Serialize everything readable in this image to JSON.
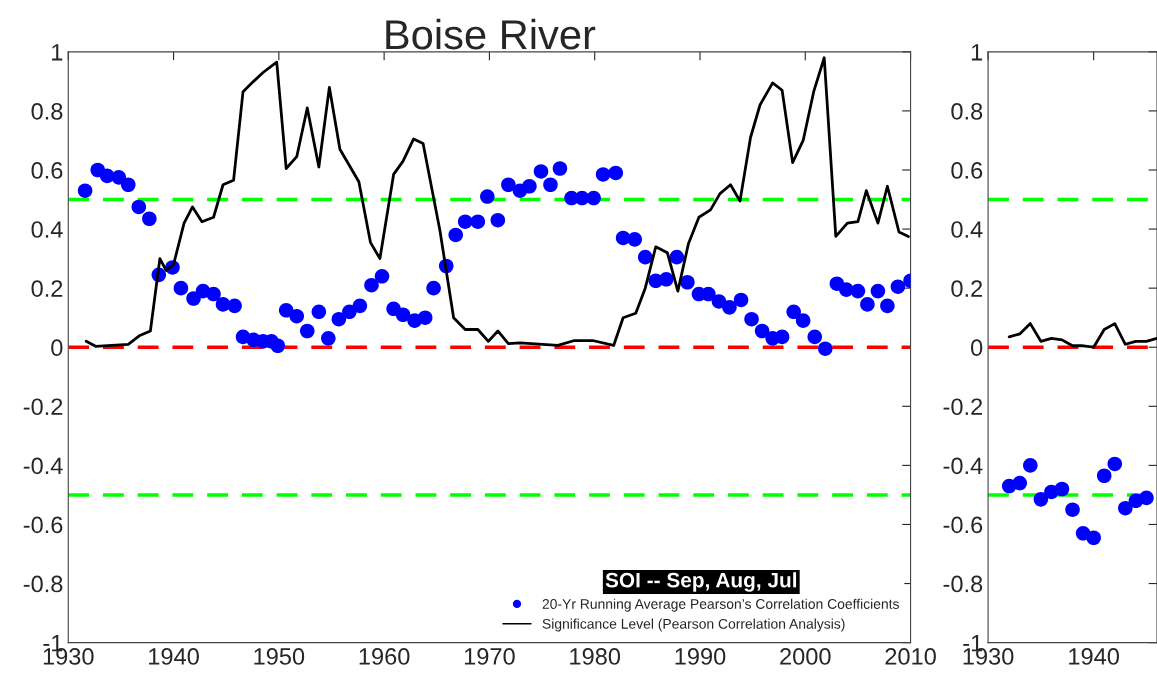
{
  "chart_data": [
    {
      "type": "scatter",
      "title": "Boise River",
      "legend_title": "SOI -- Sep, Aug, Jul",
      "legend": "bottom right",
      "grid": false,
      "xlim": [
        1930,
        2010
      ],
      "xticks": [
        1930,
        1940,
        1950,
        1960,
        1970,
        1980,
        1990,
        2000,
        2010
      ],
      "ylim": [
        -1,
        1
      ],
      "yticks": [
        -1,
        -0.8,
        -0.6,
        -0.4,
        -0.2,
        0,
        0.2,
        0.4,
        0.6,
        0.8,
        1
      ],
      "series": [
        {
          "name": "20-Yr Running Average Pearson’s Correlation Coefficients",
          "marker": "circle",
          "color": "#0000ff",
          "x": [
            1931.6,
            1932.8,
            1933.7,
            1934.8,
            1935.7,
            1936.7,
            1937.7,
            1938.6,
            1939.9,
            1940.7,
            1941.9,
            1942.8,
            1943.8,
            1944.7,
            1945.8,
            1946.6,
            1947.6,
            1948.5,
            1949.3,
            1949.9,
            1950.7,
            1951.7,
            1952.7,
            1953.8,
            1954.7,
            1955.7,
            1956.7,
            1957.7,
            1958.8,
            1959.8,
            1960.9,
            1961.8,
            1962.9,
            1963.9,
            1964.7,
            1965.9,
            1966.8,
            1967.7,
            1968.9,
            1969.8,
            1970.8,
            1971.8,
            1972.9,
            1973.8,
            1974.9,
            1975.8,
            1976.7,
            1977.8,
            1978.8,
            1979.9,
            1980.8,
            1982.0,
            1982.7,
            1983.8,
            1984.8,
            1985.8,
            1986.8,
            1987.8,
            1988.8,
            1989.9,
            1990.8,
            1991.8,
            1992.8,
            1993.9,
            1994.9,
            1995.9,
            1996.9,
            1997.8,
            1998.9,
            1999.8,
            2000.9,
            2001.9,
            2003.0,
            2003.9,
            2005.0,
            2005.9,
            2006.9,
            2007.8,
            2008.8,
            2010.0
          ],
          "values": [
            0.53,
            0.6,
            0.58,
            0.575,
            0.55,
            0.475,
            0.435,
            0.245,
            0.27,
            0.2,
            0.165,
            0.19,
            0.18,
            0.145,
            0.14,
            0.035,
            0.025,
            0.02,
            0.02,
            0.005,
            0.125,
            0.105,
            0.055,
            0.12,
            0.03,
            0.095,
            0.12,
            0.14,
            0.21,
            0.24,
            0.13,
            0.11,
            0.09,
            0.1,
            0.2,
            0.275,
            0.38,
            0.425,
            0.425,
            0.51,
            0.43,
            0.55,
            0.53,
            0.545,
            0.595,
            0.55,
            0.605,
            0.505,
            0.505,
            0.505,
            0.585,
            0.59,
            0.37,
            0.365,
            0.305,
            0.225,
            0.23,
            0.305,
            0.22,
            0.18,
            0.18,
            0.155,
            0.135,
            0.16,
            0.095,
            0.055,
            0.03,
            0.035,
            0.12,
            0.09,
            0.035,
            -0.005,
            0.215,
            0.195,
            0.19,
            0.145,
            0.19,
            0.14,
            0.205,
            0.225
          ]
        },
        {
          "name": "Significance Level (Pearson Correlation Analysis)",
          "type": "line",
          "marker": "none",
          "line_style": "solid",
          "color": "#000000",
          "x": [
            1931.7,
            1932.6,
            1935.7,
            1936.8,
            1937.8,
            1938.7,
            1939.3,
            1940.0,
            1941.0,
            1941.8,
            1942.7,
            1943.8,
            1944.7,
            1945.7,
            1946.6,
            1947.6,
            1948.5,
            1949.8,
            1950.7,
            1951.7,
            1952.7,
            1953.8,
            1954.8,
            1955.8,
            1957.6,
            1958.7,
            1959.6,
            1960.9,
            1961.8,
            1962.8,
            1963.7,
            1965.3,
            1966.6,
            1967.7,
            1968.9,
            1969.9,
            1970.8,
            1971.8,
            1972.9,
            1976.5,
            1978.0,
            1979.9,
            1981.8,
            1982.7,
            1983.9,
            1984.8,
            1985.8,
            1986.9,
            1987.9,
            1988.9,
            1989.9,
            1991.0,
            1991.9,
            1992.9,
            1993.8,
            1994.8,
            1995.7,
            1996.9,
            1997.8,
            1998.8,
            1999.8,
            2000.8,
            2001.8,
            2002.9,
            2004.0,
            2005.0,
            2005.8,
            2006.9,
            2007.8,
            2008.9,
            2009.8
          ],
          "values": [
            0.02,
            0.003,
            0.01,
            0.04,
            0.055,
            0.3,
            0.26,
            0.28,
            0.42,
            0.475,
            0.425,
            0.44,
            0.55,
            0.565,
            0.865,
            0.9,
            0.93,
            0.965,
            0.605,
            0.645,
            0.81,
            0.61,
            0.88,
            0.67,
            0.56,
            0.355,
            0.3,
            0.585,
            0.63,
            0.705,
            0.69,
            0.395,
            0.1,
            0.06,
            0.06,
            0.02,
            0.055,
            0.012,
            0.015,
            0.006,
            0.022,
            0.022,
            0.006,
            0.1,
            0.115,
            0.2,
            0.34,
            0.32,
            0.19,
            0.35,
            0.44,
            0.465,
            0.52,
            0.55,
            0.495,
            0.71,
            0.82,
            0.895,
            0.87,
            0.625,
            0.7,
            0.865,
            0.98,
            0.375,
            0.42,
            0.425,
            0.53,
            0.42,
            0.545,
            0.39,
            0.375
          ]
        }
      ],
      "ref_lines": [
        {
          "axis": "y",
          "value": 0.5,
          "color": "#00ff00",
          "line_style": "dashed"
        },
        {
          "axis": "y",
          "value": -0.5,
          "color": "#00ff00",
          "line_style": "dashed"
        },
        {
          "axis": "y",
          "value": 0,
          "color": "#ff0000",
          "line_style": "dashed"
        }
      ]
    },
    {
      "type": "scatter",
      "legend": false,
      "grid": false,
      "xlim": [
        1930,
        1946
      ],
      "xticks": [
        1930,
        1940
      ],
      "ylim": [
        -1,
        1
      ],
      "yticks": [
        -1,
        -0.8,
        -0.6,
        -0.4,
        -0.2,
        0,
        0.2,
        0.4,
        0.6,
        0.8,
        1
      ],
      "series": [
        {
          "marker": "circle",
          "color": "#0000ff",
          "x": [
            1932,
            1933,
            1934,
            1935,
            1936,
            1937,
            1938,
            1939,
            1940,
            1941,
            1942,
            1943,
            1944,
            1945
          ],
          "values": [
            -0.47,
            -0.46,
            -0.4,
            -0.515,
            -0.49,
            -0.48,
            -0.55,
            -0.63,
            -0.645,
            -0.435,
            -0.395,
            -0.545,
            -0.52,
            -0.51
          ]
        },
        {
          "type": "line",
          "marker": "none",
          "line_style": "solid",
          "color": "#000000",
          "x": [
            1932,
            1933,
            1934,
            1935,
            1936,
            1937,
            1938,
            1939,
            1940,
            1941,
            1942,
            1943,
            1944,
            1945,
            1946
          ],
          "values": [
            0.035,
            0.045,
            0.08,
            0.02,
            0.03,
            0.025,
            0.005,
            0.005,
            0.0,
            0.06,
            0.08,
            0.01,
            0.02,
            0.02,
            0.03
          ]
        }
      ],
      "ref_lines": [
        {
          "axis": "y",
          "value": 0.5,
          "color": "#00ff00",
          "line_style": "dashed"
        },
        {
          "axis": "y",
          "value": -0.5,
          "color": "#00ff00",
          "line_style": "dashed"
        },
        {
          "axis": "y",
          "value": 0,
          "color": "#ff0000",
          "line_style": "dashed"
        }
      ]
    }
  ]
}
